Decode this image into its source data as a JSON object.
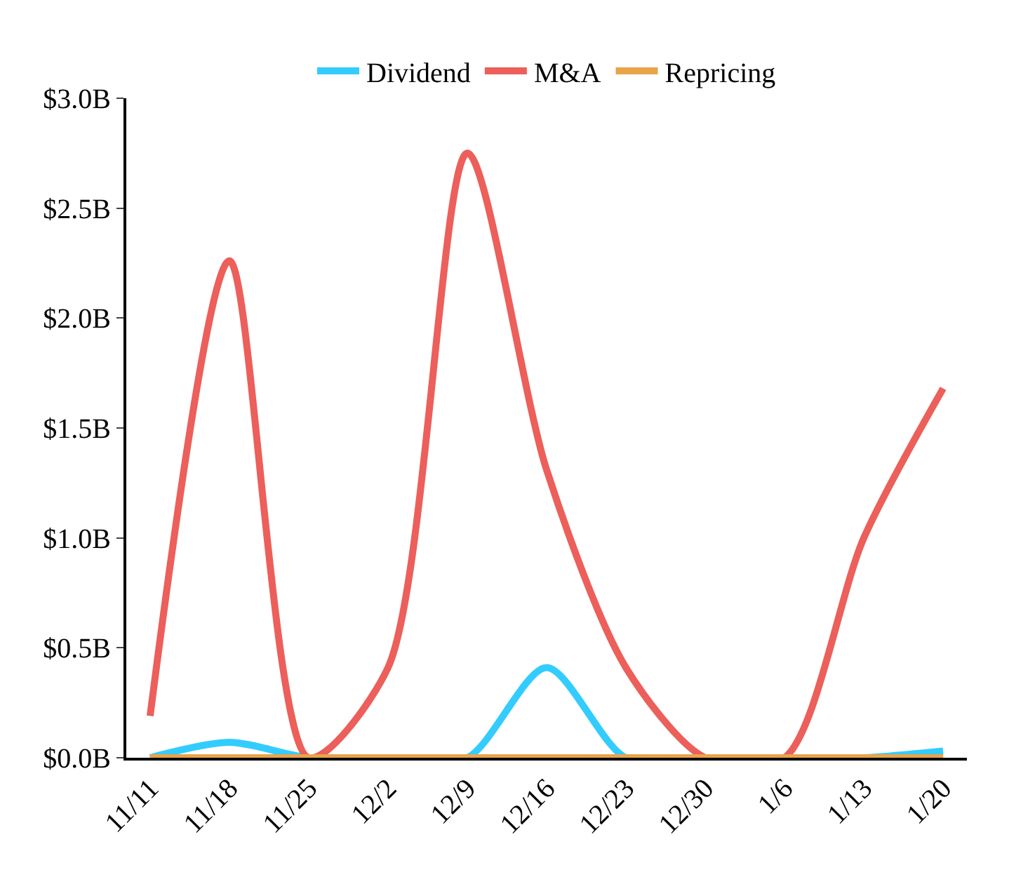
{
  "chart_data": {
    "type": "line",
    "categories": [
      "11/11",
      "11/18",
      "11/25",
      "12/2",
      "12/9",
      "12/16",
      "12/23",
      "12/30",
      "1/6",
      "1/13",
      "1/20"
    ],
    "series": [
      {
        "name": "Dividend",
        "color": "#33ccff",
        "values": [
          0,
          0.07,
          0,
          0,
          0,
          0.41,
          0,
          0,
          0,
          0,
          0.03
        ]
      },
      {
        "name": "M&A",
        "color": "#ec5f5a",
        "values": [
          0.19,
          2.26,
          0,
          0.41,
          2.75,
          1.31,
          0.41,
          0,
          0,
          1.0,
          1.68
        ]
      },
      {
        "name": "Repricing",
        "color": "#e8a44a",
        "values": [
          0,
          0,
          0,
          0,
          0,
          0,
          0,
          0,
          0,
          0,
          0
        ]
      }
    ],
    "ylim": [
      0,
      3.0
    ],
    "yticks": [
      {
        "value": 0,
        "label": "$0.0B"
      },
      {
        "value": 0.5,
        "label": "$0.5B"
      },
      {
        "value": 1.0,
        "label": "$1.0B"
      },
      {
        "value": 1.5,
        "label": "$1.5B"
      },
      {
        "value": 2.0,
        "label": "$2.0B"
      },
      {
        "value": 2.5,
        "label": "$2.5B"
      },
      {
        "value": 3.0,
        "label": "$3.0B"
      }
    ],
    "legend": "top",
    "marker": "none",
    "line_style": "solid"
  }
}
